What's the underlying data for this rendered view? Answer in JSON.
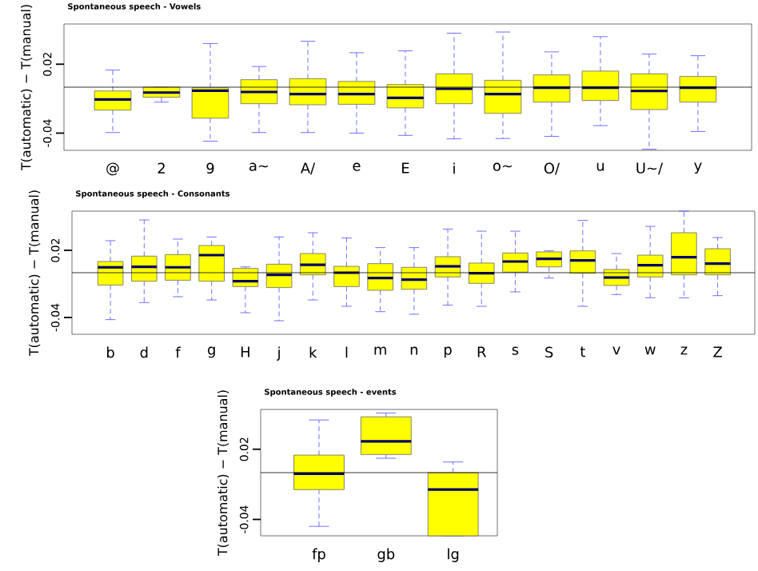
{
  "chart_data": [
    {
      "type": "box",
      "title": "Spontaneous speech - Vowels",
      "ylabel": "T(automatic) − T(manual)",
      "color": "#ffff00",
      "categories": [
        "@",
        "2",
        "9",
        "a~",
        "A/",
        "e",
        "E",
        "i",
        "o~",
        "O/",
        "u",
        "U~/",
        "y"
      ],
      "boxes": [
        {
          "low": -0.0395,
          "q1": -0.02,
          "median": -0.0107,
          "q3": -0.0033,
          "high": 0.0149
        },
        {
          "low": -0.013,
          "q1": -0.0088,
          "median": -0.0047,
          "q3": 0.0,
          "high": 0.0
        },
        {
          "low": -0.047,
          "q1": -0.027,
          "median": -0.003,
          "q3": -0.0005,
          "high": 0.038
        },
        {
          "low": -0.0395,
          "q1": -0.0144,
          "median": -0.0042,
          "q3": 0.0065,
          "high": 0.018
        },
        {
          "low": -0.0395,
          "q1": -0.0153,
          "median": -0.006,
          "q3": 0.0074,
          "high": 0.04
        },
        {
          "low": -0.04,
          "q1": -0.0149,
          "median": -0.006,
          "q3": 0.005,
          "high": 0.03
        },
        {
          "low": -0.042,
          "q1": -0.018,
          "median": -0.0093,
          "q3": 0.0023,
          "high": 0.0316
        },
        {
          "low": -0.045,
          "q1": -0.0144,
          "median": -0.0014,
          "q3": 0.0116,
          "high": 0.047
        },
        {
          "low": -0.0447,
          "q1": -0.0228,
          "median": -0.006,
          "q3": 0.006,
          "high": 0.048
        },
        {
          "low": -0.0428,
          "q1": -0.013,
          "median": -0.0005,
          "q3": 0.0107,
          "high": 0.0307
        },
        {
          "low": -0.0335,
          "q1": -0.0116,
          "median": -0.0005,
          "q3": 0.014,
          "high": 0.044
        },
        {
          "low": -0.054,
          "q1": -0.0195,
          "median": -0.0033,
          "q3": 0.0116,
          "high": 0.0288
        },
        {
          "low": -0.0386,
          "q1": -0.013,
          "median": -0.0005,
          "q3": 0.0093,
          "high": 0.0274
        }
      ],
      "ylim": [
        -0.055,
        0.055
      ],
      "yticks": [
        -0.04,
        0.02
      ],
      "ref_lines": [
        {
          "axis": "y",
          "value": 0
        }
      ]
    },
    {
      "type": "box",
      "title": "Spontaneous speech - Consonants",
      "ylabel": "T(automatic) − T(manual)",
      "color": "#ffff00",
      "categories": [
        "b",
        "d",
        "f",
        "g",
        "H",
        "j",
        "k",
        "l",
        "m",
        "n",
        "p",
        "R",
        "s",
        "S",
        "t",
        "v",
        "w",
        "z",
        "Z"
      ],
      "boxes": [
        {
          "low": -0.0419,
          "q1": -0.011,
          "median": 0.0048,
          "q3": 0.01,
          "high": 0.0286
        },
        {
          "low": -0.0267,
          "q1": -0.0076,
          "median": 0.0052,
          "q3": 0.0148,
          "high": 0.0471
        },
        {
          "low": -0.0214,
          "q1": -0.0067,
          "median": 0.0048,
          "q3": 0.0162,
          "high": 0.03
        },
        {
          "low": -0.0243,
          "q1": -0.0076,
          "median": 0.0157,
          "q3": 0.0243,
          "high": 0.0319
        },
        {
          "low": -0.0357,
          "q1": -0.0124,
          "median": -0.0076,
          "q3": 0.0038,
          "high": 0.0052
        },
        {
          "low": -0.0429,
          "q1": -0.0133,
          "median": -0.0019,
          "q3": 0.0076,
          "high": 0.0319
        },
        {
          "low": -0.0243,
          "q1": -0.0019,
          "median": 0.0071,
          "q3": 0.0171,
          "high": 0.0357
        },
        {
          "low": -0.03,
          "q1": -0.0124,
          "median": 0.0,
          "q3": 0.0057,
          "high": 0.031
        },
        {
          "low": -0.0348,
          "q1": -0.0157,
          "median": -0.0048,
          "q3": 0.0081,
          "high": 0.0224
        },
        {
          "low": -0.0371,
          "q1": -0.0148,
          "median": -0.0062,
          "q3": 0.0048,
          "high": 0.0224
        },
        {
          "low": -0.029,
          "q1": -0.0038,
          "median": 0.0057,
          "q3": 0.0143,
          "high": 0.039
        },
        {
          "low": -0.03,
          "q1": -0.0095,
          "median": -0.0005,
          "q3": 0.0086,
          "high": 0.0371
        },
        {
          "low": -0.0171,
          "q1": 0.0005,
          "median": 0.01,
          "q3": 0.0176,
          "high": 0.0371
        },
        {
          "low": -0.0048,
          "q1": 0.0052,
          "median": 0.0124,
          "q3": 0.0186,
          "high": 0.0195
        },
        {
          "low": -0.03,
          "q1": -0.0005,
          "median": 0.011,
          "q3": 0.0195,
          "high": 0.0467
        },
        {
          "low": -0.0195,
          "q1": -0.0114,
          "median": -0.0043,
          "q3": 0.0029,
          "high": 0.0171
        },
        {
          "low": -0.0224,
          "q1": -0.0038,
          "median": 0.0067,
          "q3": 0.0157,
          "high": 0.0414
        },
        {
          "low": -0.0224,
          "q1": -0.0019,
          "median": 0.0138,
          "q3": 0.0357,
          "high": 0.055
        },
        {
          "low": -0.0205,
          "q1": -0.0019,
          "median": 0.0081,
          "q3": 0.0214,
          "high": 0.0314
        }
      ],
      "ylim": [
        -0.055,
        0.055
      ],
      "yticks": [
        -0.04,
        0.02
      ],
      "ref_lines": [
        {
          "axis": "y",
          "value": 0
        }
      ]
    },
    {
      "type": "box",
      "title": "Spontaneous speech - events",
      "ylabel": "T(automatic) − T(manual)",
      "color": "#ffff00",
      "categories": [
        "fp",
        "gb",
        "lg"
      ],
      "boxes": [
        {
          "low": -0.0459,
          "q1": -0.0145,
          "median": -0.0009,
          "q3": 0.015,
          "high": 0.045
        },
        {
          "low": 0.0123,
          "q1": 0.0155,
          "median": 0.0268,
          "q3": 0.0477,
          "high": 0.051
        },
        {
          "low": -0.054,
          "q1": -0.054,
          "median": -0.0145,
          "q3": 0.0,
          "high": 0.0091
        }
      ],
      "ylim": [
        -0.054,
        0.054
      ],
      "yticks": [
        -0.04,
        0.02
      ],
      "ref_lines": [
        {
          "axis": "y",
          "value": 0
        }
      ]
    }
  ]
}
